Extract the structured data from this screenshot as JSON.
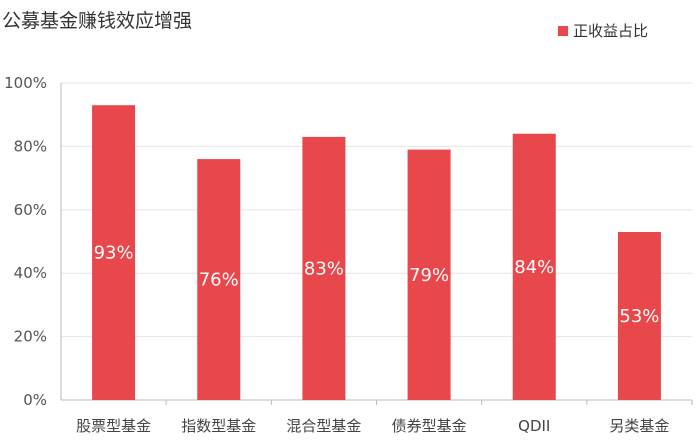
{
  "chart_data": {
    "type": "bar",
    "title": "公募基金赚钱效应增强",
    "categories": [
      "股票型基金",
      "指数型基金",
      "混合型基金",
      "债券型基金",
      "QDII",
      "另类基金"
    ],
    "series": [
      {
        "name": "正收益占比",
        "values": [
          93,
          76,
          83,
          79,
          84,
          53
        ],
        "labels": [
          "93%",
          "76%",
          "83%",
          "79%",
          "84%",
          "53%"
        ]
      }
    ],
    "ylim": [
      0,
      100
    ],
    "yticks": [
      0,
      20,
      40,
      60,
      80,
      100
    ],
    "ytick_labels": [
      "0%",
      "20%",
      "40%",
      "60%",
      "80%",
      "100%"
    ],
    "grid": true,
    "legend_position": "top-right",
    "colors": {
      "bar": "#E8474C",
      "grid": "#E6E6E6",
      "axis": "#BBBBBB"
    }
  }
}
